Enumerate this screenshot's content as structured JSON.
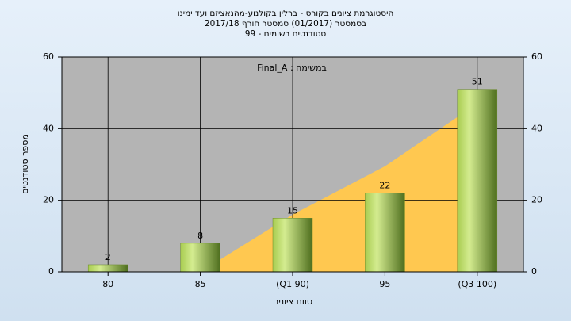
{
  "chart_data": {
    "type": "bar",
    "title": [
      "היסטוגרמת ציונים בקורס - ברלין בקולנוע-מהנאציזם ועד ימינו",
      "בסמסטר  (01/2017)  סמסטר חורף  2017/18",
      "סטודנטים רשומים - 99"
    ],
    "annotation": "במשימה : Final_A",
    "x_label": "טווח ציונים",
    "y_label": "מספר סטודנטים",
    "categories": [
      "80",
      "85",
      "(Q1 90)",
      "95",
      "(Q3 100)"
    ],
    "values": [
      2,
      8,
      15,
      22,
      51
    ],
    "color": "#8cb43c",
    "area": {
      "color": "#ffc850",
      "values": [
        null,
        0,
        16,
        29.5,
        47
      ]
    },
    "ylim": [
      0,
      60
    ],
    "yticks": [
      0,
      20,
      40,
      60
    ],
    "y2lim": [
      0,
      60
    ],
    "y2ticks": [
      0,
      20,
      40,
      60
    ],
    "grid": true
  }
}
